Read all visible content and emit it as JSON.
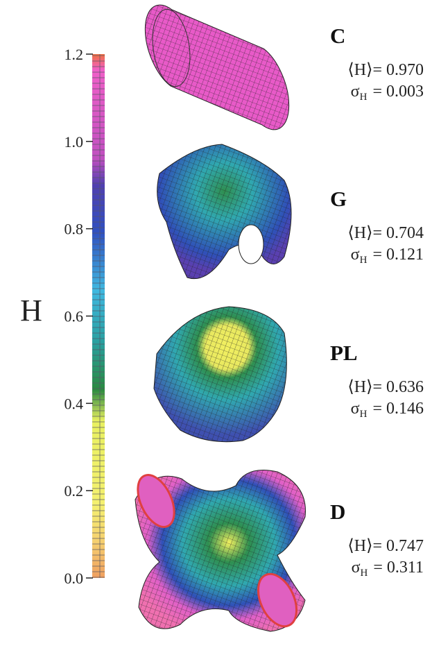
{
  "colorbar": {
    "label": "H",
    "ticks": [
      {
        "value": 0,
        "label": "0.0"
      },
      0.2,
      0.4,
      0.6,
      0.8,
      {
        "value": 1,
        "label": "1.0"
      },
      1.2
    ]
  },
  "symbols": {
    "mean": "⟨H⟩",
    "sigma": "σ",
    "sigma_subscript": "H",
    "equals": "="
  },
  "surfaces": [
    {
      "name": "C",
      "mean": "0.970",
      "sigma": "0.003"
    },
    {
      "name": "G",
      "mean": "0.704",
      "sigma": "0.121"
    },
    {
      "name": "PL",
      "mean": "0.636",
      "sigma": "0.146"
    },
    {
      "name": "D",
      "mean": "0.747",
      "sigma": "0.311"
    }
  ]
}
